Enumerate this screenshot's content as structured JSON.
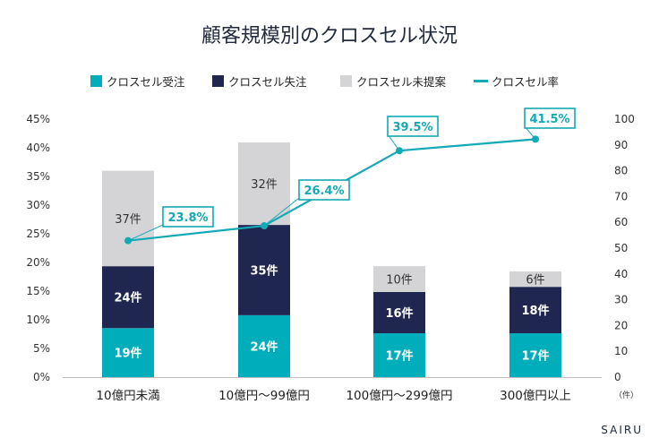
{
  "brand": "SAIRU",
  "colors": {
    "received": "#00aebb",
    "lost": "#1f2750",
    "not_proposed": "#d4d4d6",
    "rate": "#13a9b6"
  },
  "chart_data": {
    "type": "bar",
    "stacked": true,
    "title": "顧客規模別のクロスセル状況",
    "categories": [
      "10億円未満",
      "10億円〜99億円",
      "100億円〜299億円",
      "300億円以上"
    ],
    "series": [
      {
        "name": "クロスセル受注",
        "values": [
          19,
          24,
          17,
          17
        ],
        "labels": [
          "19件",
          "24件",
          "17件",
          "17件"
        ],
        "axis": "right"
      },
      {
        "name": "クロスセル失注",
        "values": [
          24,
          35,
          16,
          18
        ],
        "labels": [
          "24件",
          "35件",
          "16件",
          "18件"
        ],
        "axis": "right"
      },
      {
        "name": "クロスセル未提案",
        "values": [
          37,
          32,
          10,
          6
        ],
        "labels": [
          "37件",
          "32件",
          "10件",
          "6件"
        ],
        "axis": "right"
      },
      {
        "name": "クロスセル率",
        "type": "line",
        "values": [
          23.8,
          26.4,
          39.5,
          41.5
        ],
        "labels": [
          "23.8%",
          "26.4%",
          "39.5%",
          "41.5%"
        ],
        "axis": "left"
      }
    ],
    "y_left": {
      "ylim": [
        0,
        45
      ],
      "ticks": [
        "0%",
        "5%",
        "10%",
        "15%",
        "20%",
        "25%",
        "30%",
        "35%",
        "40%",
        "45%"
      ]
    },
    "y_right": {
      "ylim": [
        0,
        100
      ],
      "ticks": [
        "0",
        "10",
        "20",
        "30",
        "40",
        "50",
        "60",
        "70",
        "80",
        "90",
        "100"
      ],
      "unit": "（件）"
    },
    "legend_position": "top",
    "grid": false
  }
}
